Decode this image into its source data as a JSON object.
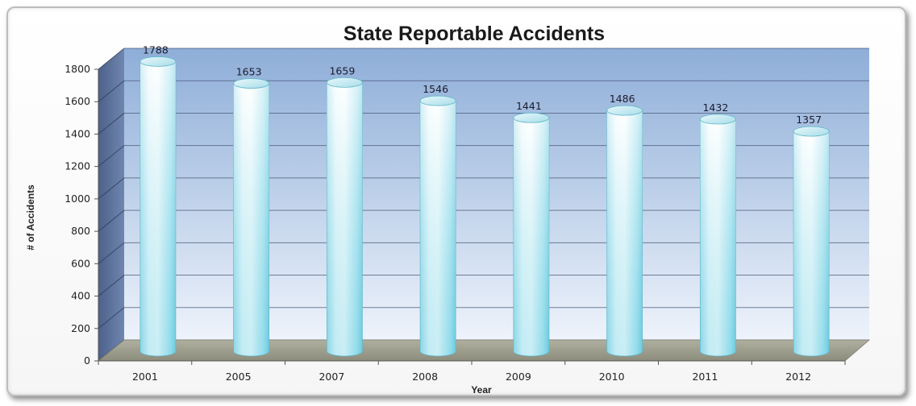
{
  "chart_data": {
    "type": "bar",
    "title": "State Reportable Accidents",
    "xlabel": "Year",
    "ylabel": "# of Accidents",
    "categories": [
      "2001",
      "2005",
      "2007",
      "2008",
      "2009",
      "2010",
      "2011",
      "2012"
    ],
    "values": [
      1788,
      1653,
      1659,
      1546,
      1441,
      1486,
      1432,
      1357
    ],
    "ylim": [
      0,
      1800
    ],
    "yticks": [
      0,
      200,
      400,
      600,
      800,
      1000,
      1200,
      1400,
      1600,
      1800
    ],
    "grid": true,
    "legend": "none",
    "bar_style": "3d-cylinder",
    "colors": {
      "back_wall_top": "#8eaed8",
      "back_wall_bottom": "#eef3fb",
      "side_wall": "#5a6f96",
      "floor": "#9e9e8e",
      "bar_light": "#ffffff",
      "bar_dark": "#7ed3e6"
    }
  }
}
